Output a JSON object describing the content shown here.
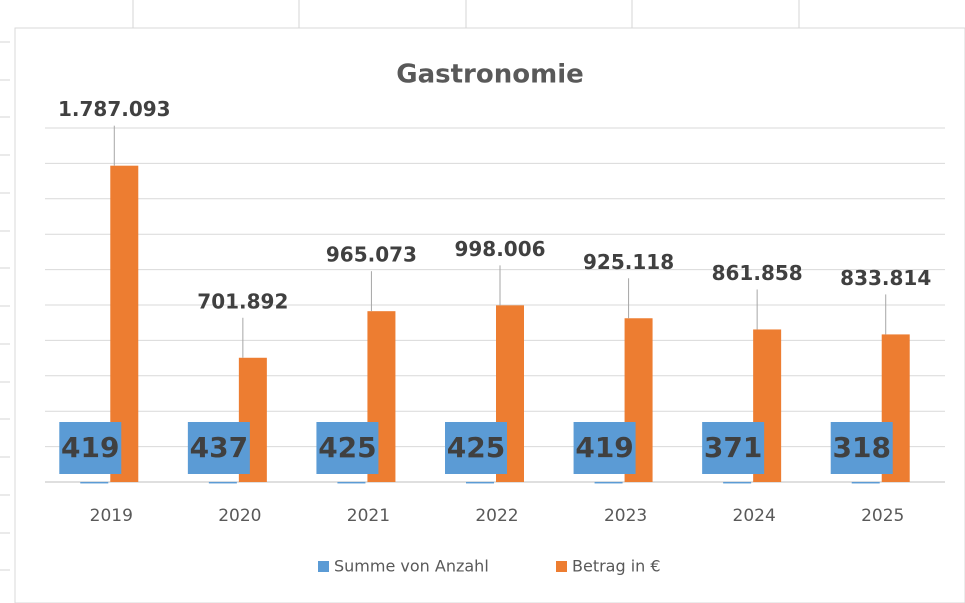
{
  "chart_data": {
    "type": "bar",
    "title": "Gastronomie",
    "categories": [
      "2019",
      "2020",
      "2021",
      "2022",
      "2023",
      "2024",
      "2025"
    ],
    "series": [
      {
        "name": "Summe von Anzahl",
        "color": "#5b9bd5",
        "values": [
          419,
          437,
          425,
          425,
          419,
          371,
          318
        ]
      },
      {
        "name": "Betrag in €",
        "color": "#ed7d31",
        "values": [
          1787093,
          701892,
          965073,
          998006,
          925118,
          861858,
          833814
        ],
        "value_labels": [
          "1.787.093",
          "701.892",
          "965.073",
          "998.006",
          "925.118",
          "861.858",
          "833.814"
        ]
      }
    ],
    "ylim": [
      0,
      2000000
    ],
    "yticks": [
      0,
      200000,
      400000,
      600000,
      800000,
      1000000,
      1200000,
      1400000,
      1600000,
      1800000,
      2000000
    ],
    "grid": true,
    "legend": "bottom"
  }
}
